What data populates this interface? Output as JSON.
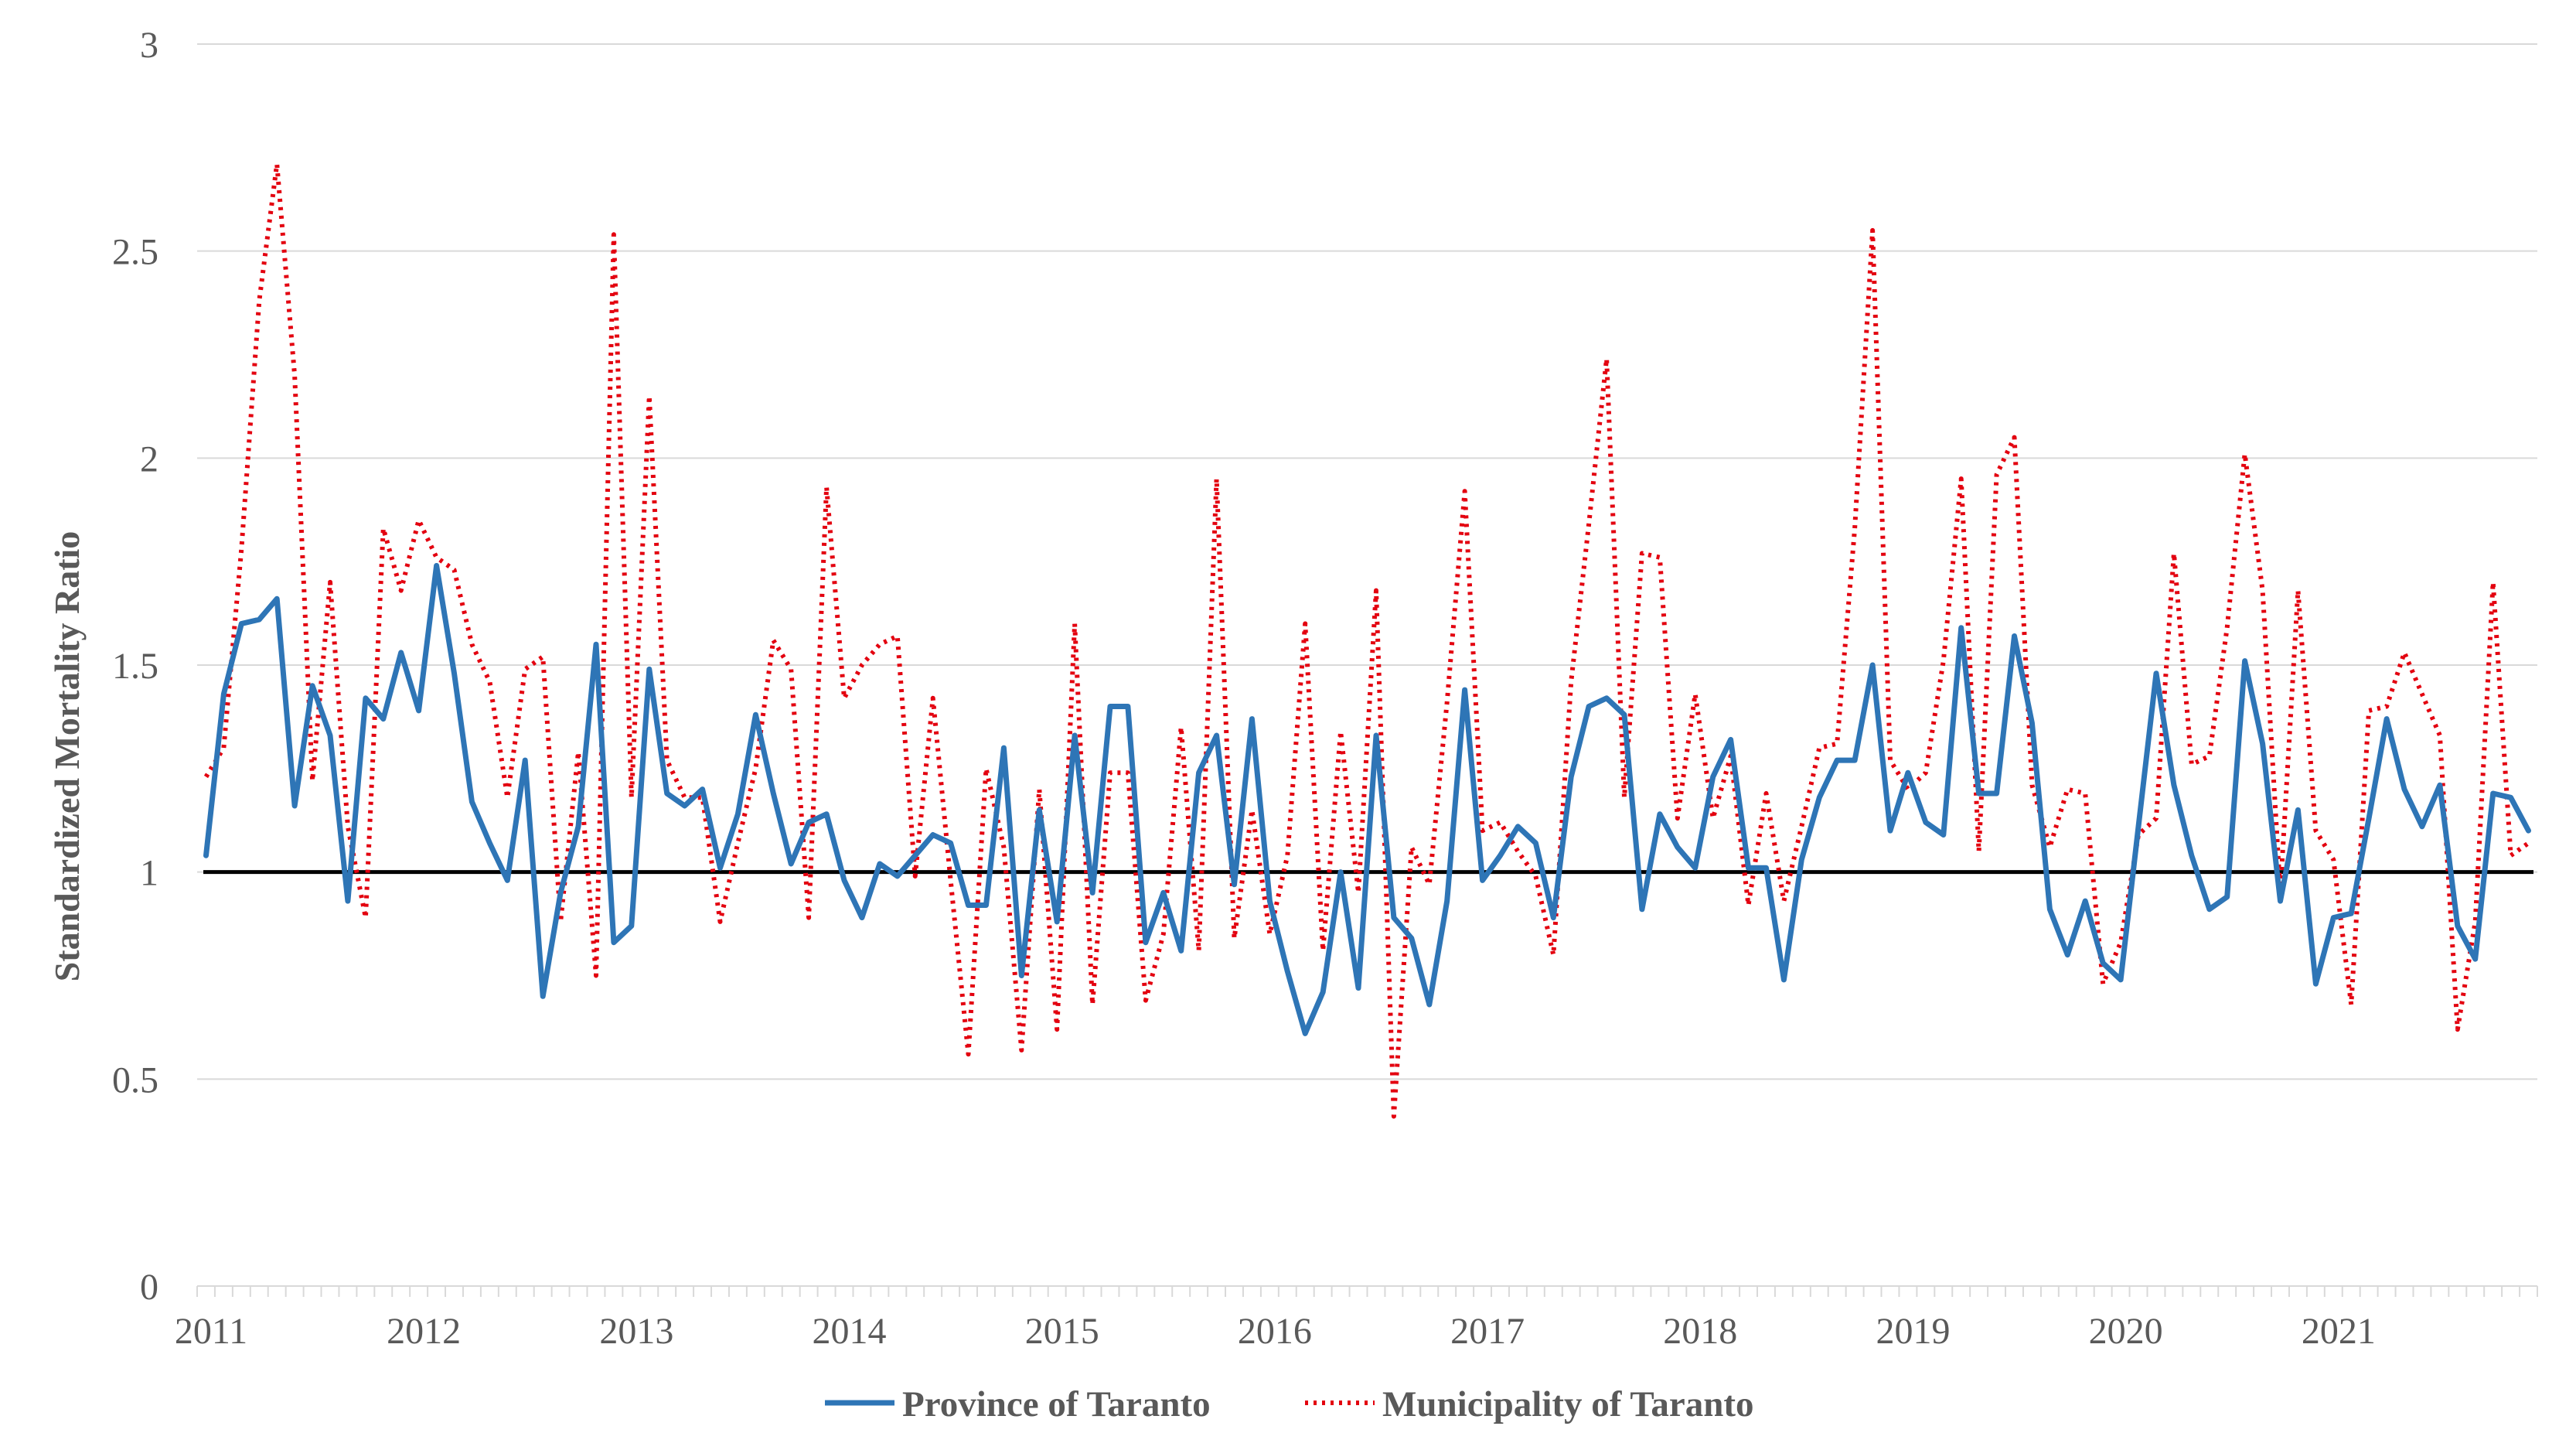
{
  "chart_data": {
    "type": "line",
    "title": "",
    "xlabel": "",
    "ylabel": "Standardized Mortality Ratio",
    "ylim": [
      0,
      3
    ],
    "yticks": [
      0,
      0.5,
      1,
      1.5,
      2,
      2.5,
      3
    ],
    "ytick_labels": [
      "0",
      "0.5",
      "1",
      "1.5",
      "2",
      "2.5",
      "3"
    ],
    "x_start_year": 2011,
    "xtick_labels": [
      "2011",
      "2012",
      "2013",
      "2014",
      "2015",
      "2016",
      "2017",
      "2018",
      "2019",
      "2020",
      "2021"
    ],
    "months_per_year": 12,
    "grid": true,
    "reference_line": {
      "value": 1,
      "color": "#000000"
    },
    "legend_position": "bottom-center",
    "series": [
      {
        "name": "Province of Taranto",
        "style": "solid",
        "color": "#2E75B6",
        "values": [
          1.04,
          1.43,
          1.6,
          1.61,
          1.66,
          1.16,
          1.45,
          1.33,
          0.93,
          1.42,
          1.37,
          1.53,
          1.39,
          1.74,
          1.48,
          1.17,
          1.07,
          0.98,
          1.27,
          0.7,
          0.95,
          1.11,
          1.55,
          0.83,
          0.87,
          1.49,
          1.19,
          1.16,
          1.2,
          1.01,
          1.14,
          1.38,
          1.19,
          1.02,
          1.12,
          1.14,
          0.98,
          0.89,
          1.02,
          0.99,
          1.04,
          1.09,
          1.07,
          0.92,
          0.92,
          1.3,
          0.75,
          1.15,
          0.88,
          1.33,
          0.95,
          1.4,
          1.4,
          0.83,
          0.95,
          0.81,
          1.24,
          1.33,
          0.97,
          1.37,
          0.93,
          0.76,
          0.61,
          0.71,
          1.0,
          0.72,
          1.33,
          0.89,
          0.84,
          0.68,
          0.93,
          1.44,
          0.98,
          1.04,
          1.11,
          1.07,
          0.89,
          1.23,
          1.4,
          1.42,
          1.38,
          0.91,
          1.14,
          1.06,
          1.01,
          1.23,
          1.32,
          1.01,
          1.01,
          0.74,
          1.03,
          1.18,
          1.27,
          1.27,
          1.5,
          1.1,
          1.24,
          1.12,
          1.09,
          1.59,
          1.19,
          1.19,
          1.57,
          1.36,
          0.91,
          0.8,
          0.93,
          0.78,
          0.74,
          1.11,
          1.48,
          1.21,
          1.04,
          0.91,
          0.94,
          1.51,
          1.31,
          0.93,
          1.15,
          0.73,
          0.89,
          0.9,
          1.13,
          1.37,
          1.2,
          1.11,
          1.21,
          0.87,
          0.79,
          1.19,
          1.18,
          1.1
        ]
      },
      {
        "name": "Municipality of Taranto",
        "style": "dotted",
        "color": "#E3000F",
        "values": [
          1.23,
          1.3,
          1.78,
          2.38,
          2.71,
          2.2,
          1.22,
          1.7,
          1.11,
          0.89,
          1.83,
          1.68,
          1.85,
          1.76,
          1.73,
          1.55,
          1.46,
          1.18,
          1.49,
          1.52,
          0.88,
          1.29,
          0.75,
          2.54,
          1.18,
          2.15,
          1.27,
          1.18,
          1.18,
          0.88,
          1.07,
          1.25,
          1.56,
          1.49,
          0.89,
          1.93,
          1.42,
          1.5,
          1.55,
          1.57,
          0.99,
          1.42,
          0.98,
          0.56,
          1.25,
          1.06,
          0.57,
          1.2,
          0.62,
          1.6,
          0.68,
          1.24,
          1.24,
          0.69,
          0.85,
          1.35,
          0.81,
          1.95,
          0.84,
          1.15,
          0.85,
          1.04,
          1.6,
          0.81,
          1.34,
          0.95,
          1.68,
          0.41,
          1.06,
          0.97,
          1.41,
          1.92,
          1.1,
          1.12,
          1.05,
          0.99,
          0.8,
          1.46,
          1.84,
          2.24,
          1.18,
          1.77,
          1.76,
          1.13,
          1.43,
          1.13,
          1.28,
          0.92,
          1.19,
          0.93,
          1.11,
          1.3,
          1.31,
          1.83,
          2.55,
          1.27,
          1.2,
          1.24,
          1.51,
          1.95,
          1.05,
          1.96,
          2.05,
          1.21,
          1.06,
          1.2,
          1.19,
          0.73,
          0.83,
          1.09,
          1.13,
          1.77,
          1.26,
          1.28,
          1.59,
          2.01,
          1.68,
          0.95,
          1.68,
          1.1,
          1.03,
          0.68,
          1.39,
          1.4,
          1.53,
          1.43,
          1.33,
          0.62,
          0.88,
          1.7,
          1.04,
          1.07
        ]
      }
    ]
  }
}
